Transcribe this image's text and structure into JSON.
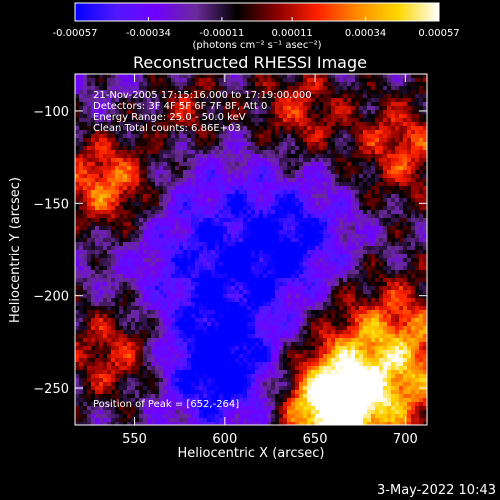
{
  "chart_data": {
    "type": "heatmap",
    "title": "Reconstructed RHESSI Image",
    "xlabel": "Heliocentric X (arcsec)",
    "ylabel": "Heliocentric Y (arcsec)",
    "xlim": [
      517,
      712
    ],
    "ylim": [
      -270,
      -80
    ],
    "x_ticks": [
      550,
      600,
      650,
      700
    ],
    "y_ticks": [
      -100,
      -150,
      -200,
      -250
    ],
    "colorbar": {
      "min": -0.00057,
      "max": 0.00057,
      "tick_values": [
        -0.00057,
        -0.00034,
        -0.00011,
        0.00011,
        0.00034,
        0.00057
      ],
      "tick_labels": [
        "-0.00057",
        "-0.00034",
        "-0.00011",
        "0.00011",
        "0.00034",
        "0.00057"
      ],
      "units_label": "(photons cm⁻² s⁻¹ asec⁻²)",
      "colors": [
        "#0000ff",
        "#5018ff",
        "#7000ff",
        "#6a2a9a",
        "#000000",
        "#8a0000",
        "#ff2000",
        "#ff8c00",
        "#ffd800",
        "#ffffff"
      ]
    },
    "annotations": [
      "21-Nov-2005 17:15:16.000 to 17:19:00.000",
      "Detectors: 3F 4F 5F 6F 7F 8F, Att 0",
      "Energy Range: 25.0 - 50.0 keV",
      "Clean    Total counts: 6.86E+03"
    ],
    "peak_label": "Position of Peak = [652,-264]",
    "peak": {
      "x": 652,
      "y": -264
    },
    "grid": false
  },
  "footer": {
    "timestamp": "3-May-2022 10:43"
  }
}
